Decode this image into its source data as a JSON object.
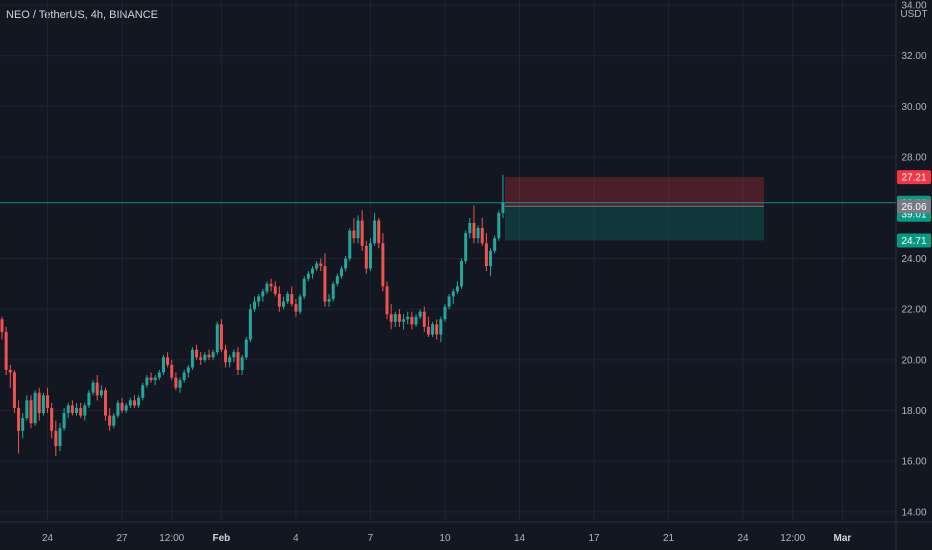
{
  "header": {
    "symbol_title": "NEO / TetherUS, 4h, BINANCE"
  },
  "chart_data": {
    "type": "candlestick",
    "symbol": "NEO / TetherUS",
    "interval": "4h",
    "exchange": "BINANCE",
    "currency": "USDT",
    "ylim": [
      13.6,
      34.2
    ],
    "y_ticks": [
      {
        "value": 34,
        "label": "34.00"
      },
      {
        "value": 32,
        "label": "32.00"
      },
      {
        "value": 30,
        "label": "30.00"
      },
      {
        "value": 28,
        "label": "28.00"
      },
      {
        "value": 24,
        "label": "24.00"
      },
      {
        "value": 22,
        "label": "22.00"
      },
      {
        "value": 20,
        "label": "20.00"
      },
      {
        "value": 18,
        "label": "18.00"
      },
      {
        "value": 16,
        "label": "16.00"
      },
      {
        "value": 14,
        "label": "14.00"
      }
    ],
    "x_ticks": [
      {
        "i": 11,
        "label": "24"
      },
      {
        "i": 29,
        "label": "27"
      },
      {
        "i": 41,
        "label": "12:00"
      },
      {
        "i": 53,
        "label": "Feb",
        "bold": true
      },
      {
        "i": 71,
        "label": "4"
      },
      {
        "i": 89,
        "label": "7"
      },
      {
        "i": 107,
        "label": "10"
      },
      {
        "i": 125,
        "label": "14"
      },
      {
        "i": 143,
        "label": "17"
      },
      {
        "i": 161,
        "label": "21"
      },
      {
        "i": 179,
        "label": "24"
      },
      {
        "i": 191,
        "label": "12:00"
      },
      {
        "i": 203,
        "label": "Mar",
        "bold": true
      }
    ],
    "candles_ohlc": [
      [
        21.6,
        21.7,
        20.8,
        21.1
      ],
      [
        21.1,
        21.3,
        19.4,
        19.6
      ],
      [
        19.6,
        19.8,
        18.9,
        19.5
      ],
      [
        19.5,
        19.6,
        17.9,
        18.1
      ],
      [
        18.1,
        18.4,
        16.3,
        17.2
      ],
      [
        17.2,
        17.9,
        16.9,
        17.7
      ],
      [
        17.7,
        18.6,
        17.6,
        18.4
      ],
      [
        18.4,
        18.6,
        17.3,
        17.5
      ],
      [
        17.5,
        18.8,
        17.4,
        18.7
      ],
      [
        18.7,
        18.9,
        17.6,
        17.9
      ],
      [
        17.9,
        18.7,
        17.8,
        18.6
      ],
      [
        18.6,
        18.9,
        17.9,
        18.1
      ],
      [
        18.1,
        18.3,
        16.9,
        17.2
      ],
      [
        17.2,
        17.6,
        16.2,
        16.6
      ],
      [
        16.6,
        17.5,
        16.4,
        17.3
      ],
      [
        17.3,
        18.1,
        17.2,
        17.9
      ],
      [
        17.9,
        18.3,
        17.7,
        18.2
      ],
      [
        18.2,
        18.4,
        17.8,
        17.9
      ],
      [
        17.9,
        18.3,
        17.8,
        18.1
      ],
      [
        18.1,
        18.3,
        17.7,
        17.8
      ],
      [
        17.8,
        18.3,
        17.6,
        18.2
      ],
      [
        18.2,
        18.8,
        18.1,
        18.7
      ],
      [
        18.7,
        19.2,
        18.6,
        19.1
      ],
      [
        19.1,
        19.4,
        18.4,
        18.6
      ],
      [
        18.6,
        19.0,
        18.5,
        18.8
      ],
      [
        18.8,
        18.9,
        17.6,
        17.8
      ],
      [
        17.8,
        18.1,
        17.2,
        17.4
      ],
      [
        17.4,
        17.9,
        17.3,
        17.8
      ],
      [
        17.8,
        18.4,
        17.7,
        18.3
      ],
      [
        18.3,
        18.5,
        17.9,
        18.0
      ],
      [
        18.0,
        18.3,
        17.9,
        18.2
      ],
      [
        18.2,
        18.5,
        18.1,
        18.4
      ],
      [
        18.4,
        18.6,
        18.1,
        18.2
      ],
      [
        18.2,
        18.6,
        18.1,
        18.5
      ],
      [
        18.5,
        19.1,
        18.4,
        19.0
      ],
      [
        19.0,
        19.4,
        18.9,
        19.3
      ],
      [
        19.3,
        19.5,
        19.1,
        19.2
      ],
      [
        19.2,
        19.4,
        19.0,
        19.3
      ],
      [
        19.3,
        19.6,
        19.2,
        19.5
      ],
      [
        19.5,
        20.2,
        19.4,
        20.1
      ],
      [
        20.1,
        20.3,
        19.7,
        19.8
      ],
      [
        19.8,
        20.0,
        19.2,
        19.3
      ],
      [
        19.3,
        19.5,
        18.8,
        18.9
      ],
      [
        18.9,
        19.3,
        18.7,
        19.2
      ],
      [
        19.2,
        19.6,
        19.1,
        19.5
      ],
      [
        19.5,
        19.8,
        19.3,
        19.7
      ],
      [
        19.7,
        20.5,
        19.6,
        20.4
      ],
      [
        20.4,
        20.6,
        20.0,
        20.1
      ],
      [
        20.1,
        20.3,
        19.8,
        20.0
      ],
      [
        20.0,
        20.3,
        19.9,
        20.2
      ],
      [
        20.2,
        20.4,
        20.0,
        20.1
      ],
      [
        20.1,
        20.4,
        20.0,
        20.3
      ],
      [
        20.3,
        21.5,
        20.2,
        21.4
      ],
      [
        21.4,
        21.6,
        20.3,
        20.4
      ],
      [
        20.4,
        20.6,
        19.7,
        19.9
      ],
      [
        19.9,
        20.2,
        19.7,
        20.1
      ],
      [
        20.1,
        20.4,
        19.9,
        20.3
      ],
      [
        20.3,
        20.5,
        19.4,
        19.6
      ],
      [
        19.6,
        20.2,
        19.4,
        20.1
      ],
      [
        20.1,
        20.9,
        20.0,
        20.8
      ],
      [
        20.8,
        22.2,
        20.7,
        22.0
      ],
      [
        22.0,
        22.5,
        21.9,
        22.3
      ],
      [
        22.3,
        22.6,
        22.1,
        22.5
      ],
      [
        22.5,
        22.8,
        22.3,
        22.7
      ],
      [
        22.7,
        23.1,
        22.6,
        23.0
      ],
      [
        23.0,
        23.2,
        22.7,
        22.9
      ],
      [
        22.9,
        23.1,
        22.5,
        22.6
      ],
      [
        22.6,
        22.9,
        21.9,
        22.1
      ],
      [
        22.1,
        22.5,
        22.0,
        22.3
      ],
      [
        22.3,
        22.7,
        22.2,
        22.6
      ],
      [
        22.6,
        22.9,
        22.1,
        22.2
      ],
      [
        22.2,
        22.4,
        21.7,
        21.9
      ],
      [
        21.9,
        22.6,
        21.8,
        22.5
      ],
      [
        22.5,
        23.3,
        22.4,
        23.2
      ],
      [
        23.2,
        23.5,
        23.1,
        23.4
      ],
      [
        23.4,
        23.7,
        23.2,
        23.6
      ],
      [
        23.6,
        23.9,
        23.5,
        23.8
      ],
      [
        23.8,
        24.0,
        23.5,
        23.7
      ],
      [
        23.7,
        24.2,
        22.1,
        22.3
      ],
      [
        22.3,
        22.6,
        22.1,
        22.4
      ],
      [
        22.4,
        23.1,
        22.3,
        23.0
      ],
      [
        23.0,
        23.4,
        22.9,
        23.3
      ],
      [
        23.3,
        23.7,
        23.2,
        23.6
      ],
      [
        23.6,
        24.1,
        23.5,
        24.0
      ],
      [
        24.0,
        25.2,
        23.9,
        25.1
      ],
      [
        25.1,
        25.6,
        24.6,
        24.8
      ],
      [
        24.8,
        25.7,
        24.6,
        25.5
      ],
      [
        25.5,
        25.9,
        24.3,
        24.5
      ],
      [
        24.5,
        24.7,
        23.4,
        23.6
      ],
      [
        23.6,
        24.8,
        23.5,
        24.6
      ],
      [
        24.6,
        25.8,
        24.5,
        25.5
      ],
      [
        25.5,
        25.6,
        24.4,
        24.6
      ],
      [
        24.6,
        25.0,
        22.7,
        22.9
      ],
      [
        22.9,
        23.1,
        21.6,
        21.8
      ],
      [
        21.8,
        22.2,
        21.2,
        21.5
      ],
      [
        21.5,
        21.9,
        21.3,
        21.8
      ],
      [
        21.8,
        22.0,
        21.3,
        21.5
      ],
      [
        21.5,
        21.8,
        21.2,
        21.6
      ],
      [
        21.6,
        21.9,
        21.4,
        21.7
      ],
      [
        21.7,
        21.9,
        21.2,
        21.4
      ],
      [
        21.4,
        21.8,
        21.3,
        21.7
      ],
      [
        21.7,
        22.0,
        21.6,
        21.9
      ],
      [
        21.9,
        22.1,
        21.1,
        21.3
      ],
      [
        21.3,
        21.7,
        20.9,
        21.0
      ],
      [
        21.0,
        21.5,
        20.9,
        21.4
      ],
      [
        21.4,
        21.6,
        20.8,
        21.0
      ],
      [
        21.0,
        21.7,
        20.7,
        21.6
      ],
      [
        21.6,
        22.2,
        21.5,
        22.1
      ],
      [
        22.1,
        22.6,
        22.0,
        22.5
      ],
      [
        22.5,
        22.8,
        22.2,
        22.7
      ],
      [
        22.7,
        23.1,
        22.6,
        22.9
      ],
      [
        22.9,
        24.0,
        22.8,
        23.9
      ],
      [
        23.9,
        25.1,
        23.8,
        25.0
      ],
      [
        25.0,
        25.6,
        24.8,
        25.4
      ],
      [
        25.4,
        26.1,
        24.6,
        24.8
      ],
      [
        24.8,
        25.3,
        24.6,
        25.2
      ],
      [
        25.2,
        25.6,
        24.5,
        24.6
      ],
      [
        24.6,
        25.0,
        23.5,
        23.7
      ],
      [
        23.7,
        24.4,
        23.3,
        24.3
      ],
      [
        24.3,
        24.9,
        24.2,
        24.8
      ],
      [
        24.8,
        25.9,
        24.7,
        25.8
      ],
      [
        25.8,
        27.3,
        25.6,
        26.2
      ]
    ],
    "last_price": 26.2,
    "position": {
      "type": "short",
      "stop_loss": 27.21,
      "entry": 26.06,
      "take_profit": 24.71
    },
    "price_labels": [
      {
        "value": 27.21,
        "text": "27.21",
        "color": "#f23645",
        "text_color": "#ffffff"
      },
      {
        "value": 26.2,
        "text": "26.20",
        "subtext": "39:01",
        "color": "#089981",
        "text_color": "#ffffff"
      },
      {
        "value": 26.06,
        "text": "26.06",
        "color": "#787b86",
        "text_color": "#ffffff"
      },
      {
        "value": 24.71,
        "text": "24.71",
        "color": "#089981",
        "text_color": "#ffffff"
      }
    ],
    "colors": {
      "background": "#131722",
      "up": "#26a69a",
      "down": "#ef5350",
      "grid": "#1f2330",
      "axis_text": "#b2b5be",
      "loss_zone": "#f23645",
      "profit_zone": "#089981",
      "last_price_line": "#22ab94"
    }
  }
}
